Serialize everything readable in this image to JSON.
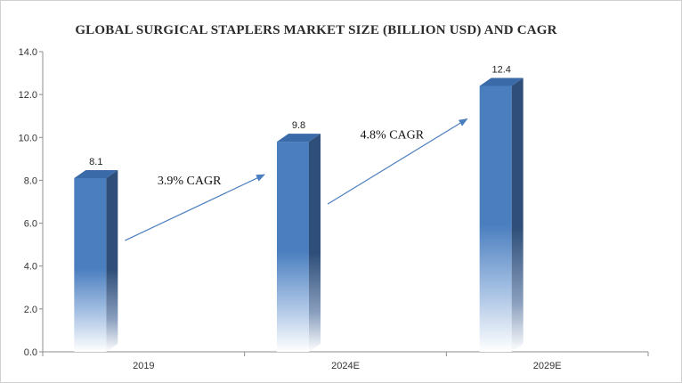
{
  "chart_data": {
    "type": "bar",
    "title": "GLOBAL SURGICAL STAPLERS MARKET SIZE (BILLION USD) AND CAGR",
    "categories": [
      "2019",
      "2024E",
      "2029E"
    ],
    "values": [
      8.1,
      9.8,
      12.4
    ],
    "data_labels": [
      "8.1",
      "9.8",
      "12.4"
    ],
    "ylim": [
      0,
      14
    ],
    "y_ticks": [
      "0.0",
      "2.0",
      "4.0",
      "6.0",
      "8.0",
      "10.0",
      "12.0",
      "14.0"
    ],
    "grid": false,
    "legend": "none",
    "bar_color": "#4a7ebf",
    "bar_side_color": "#2f4f7a",
    "annotations": [
      {
        "text": "3.9% CAGR",
        "from": 0,
        "to": 1
      },
      {
        "text": "4.8% CAGR",
        "from": 1,
        "to": 2
      }
    ]
  }
}
